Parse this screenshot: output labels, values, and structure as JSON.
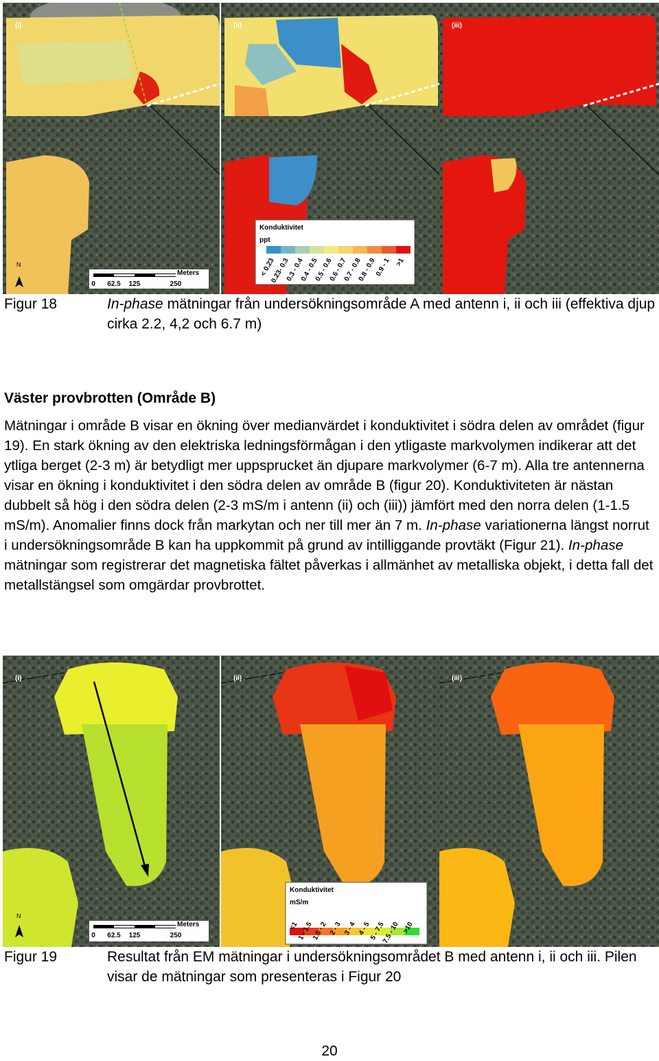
{
  "figure18": {
    "panels": [
      "(i)",
      "(ii)",
      "(iii)"
    ],
    "legend": {
      "title": "Konduktivitet",
      "unit": "ppt",
      "classes": [
        "< 0.23",
        "0.23- 0.3",
        "0.3 - 0.4",
        "0.4 - 0.5",
        "0.5 - 0.6",
        "0.6 - 0.7",
        "0.7 - 0.8",
        "0.8 - 0.9",
        "0.9 - 1",
        ">1"
      ]
    },
    "scale": {
      "north": "N",
      "unit": "Meters",
      "labels": [
        "0",
        "62.5",
        "125",
        "250"
      ]
    },
    "caption": {
      "number": "Figur 18",
      "runs": [
        "In-phase",
        " mätningar från undersökningsområde A med antenn i, ii och iii (effektiva djup cirka 2.2, 4,2 och 6.7 m)"
      ]
    }
  },
  "section": {
    "heading": "Väster provbrotten (Område B)",
    "runs": [
      "Mätningar i område B visar en ökning över medianvärdet i konduktivitet i södra delen av området (figur 19). En stark ökning av den elektriska ledningsförmågan i den ytligaste markvolymen indikerar att det ytliga berget (2-3 m) är betydligt mer uppsprucket än djupare markvolymer (6-7 m). Alla tre antennerna visar en ökning i konduktivitet i den södra delen av område B (figur 20). Konduktiviteten är nästan dubbelt så hög i den södra delen (2-3 mS/m i antenn (ii) och (iii)) jämfört med den norra delen (1-1.5 mS/m). Anomalier finns dock från markytan och ner till mer än 7 m. ",
      "In-phase",
      " variationerna längst norrut i undersökningsområde B kan ha uppkommit på grund av intilliggande provtäkt (Figur 21). ",
      "In-phase",
      " mätningar som registrerar det magnetiska fältet påverkas i allmänhet av metalliska objekt, i detta fall det metallstängsel som omgärdar provbrottet."
    ]
  },
  "figure19": {
    "panels": [
      "(i)",
      "(ii)",
      "(iii)"
    ],
    "legend": {
      "title": "Konduktivitet",
      "unit": "mS/m",
      "classes": [
        "<1",
        "1 - 1.5",
        "1.5 - 2",
        "2 - 3",
        "3 - 4",
        "4 - 5",
        "5 - 7.5",
        "7.5 - 10",
        ">10"
      ]
    },
    "scale": {
      "north": "N",
      "unit": "Meters",
      "labels": [
        "0",
        "62.5",
        "125",
        "250"
      ]
    },
    "caption": {
      "number": "Figur 19",
      "text": "Resultat från EM mätningar i undersökningsområdet B med antenn i, ii och iii. Pilen visar de mätningar som presenteras  i Figur 20"
    }
  },
  "page_number": "20"
}
